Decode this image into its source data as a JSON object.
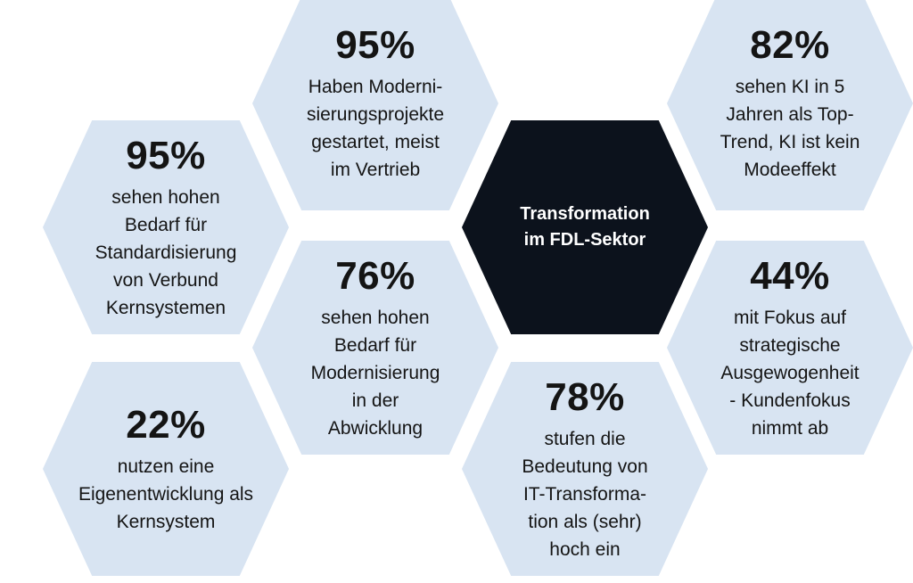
{
  "center": {
    "title": "Transformation\nim FDL-Sektor"
  },
  "hexagons": [
    {
      "percent": "95%",
      "text": "Haben Moderni-\nsierungsprojekte\ngestartet, meist\nim Vertrieb"
    },
    {
      "percent": "82%",
      "text": "sehen KI in 5\nJahren als Top-\nTrend, KI ist kein\nModeeffekt"
    },
    {
      "percent": "95%",
      "text": "sehen hohen\nBedarf für\nStandardisierung\nvon Verbund\nKernsystemen"
    },
    {
      "percent": "76%",
      "text": "sehen hohen\nBedarf für\nModernisierung\nin der\nAbwicklung"
    },
    {
      "percent": "44%",
      "text": "mit Fokus auf\nstrategische\nAusgewogenheit\n- Kundenfokus\nnimmt ab"
    },
    {
      "percent": "22%",
      "text": "nutzen eine\nEigenentwicklung als\nKernsystem"
    },
    {
      "percent": "78%",
      "text": "stufen die\nBedeutung von\nIT-Transforma-\ntion als (sehr)\nhoch ein"
    }
  ],
  "colors": {
    "hex_fill": "#d8e4f2",
    "center_fill": "#0c121c",
    "text_dark": "#141414",
    "text_light": "#ffffff"
  }
}
